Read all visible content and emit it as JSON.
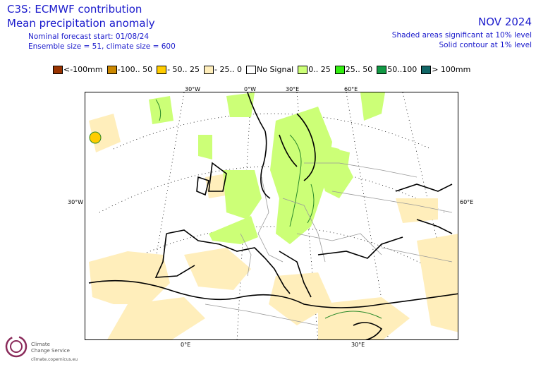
{
  "header": {
    "title_line1": "C3S: ECMWF contribution",
    "title_line2": "Mean precipitation anomaly",
    "forecast_start": "Nominal forecast start: 01/08/24",
    "ensemble": "Ensemble size = 51, climate size = 600",
    "month": "NOV 2024",
    "sig_note1": "Shaded areas significant at 10% level",
    "sig_note2": "Solid contour at 1% level"
  },
  "legend": [
    {
      "label": "<-100mm",
      "color": "#993300"
    },
    {
      "label": "-100.. 50",
      "color": "#cc8800"
    },
    {
      "label": "- 50.. 25",
      "color": "#ffcc00"
    },
    {
      "label": "- 25.. 0",
      "color": "#ffeebb"
    },
    {
      "label": "No Signal",
      "color": "#ffffff"
    },
    {
      "label": "0.. 25",
      "color": "#ccff77"
    },
    {
      "label": "25.. 50",
      "color": "#33ee11"
    },
    {
      "label": "50..100",
      "color": "#119944"
    },
    {
      "label": "> 100mm",
      "color": "#116666"
    }
  ],
  "ticks": {
    "top": [
      "30°W",
      "0°W",
      "30°E",
      "60°E"
    ],
    "left": "30°W",
    "right": "60°E",
    "bottom": [
      "0°E",
      "30°E"
    ]
  },
  "logo": {
    "name_line1": "Climate",
    "name_line2": "Change Service",
    "url": "climate.copernicus.eu"
  },
  "colors": {
    "text": "#1a1acc",
    "land_dry": "#ffeebb",
    "land_wet": "#ccff77"
  }
}
